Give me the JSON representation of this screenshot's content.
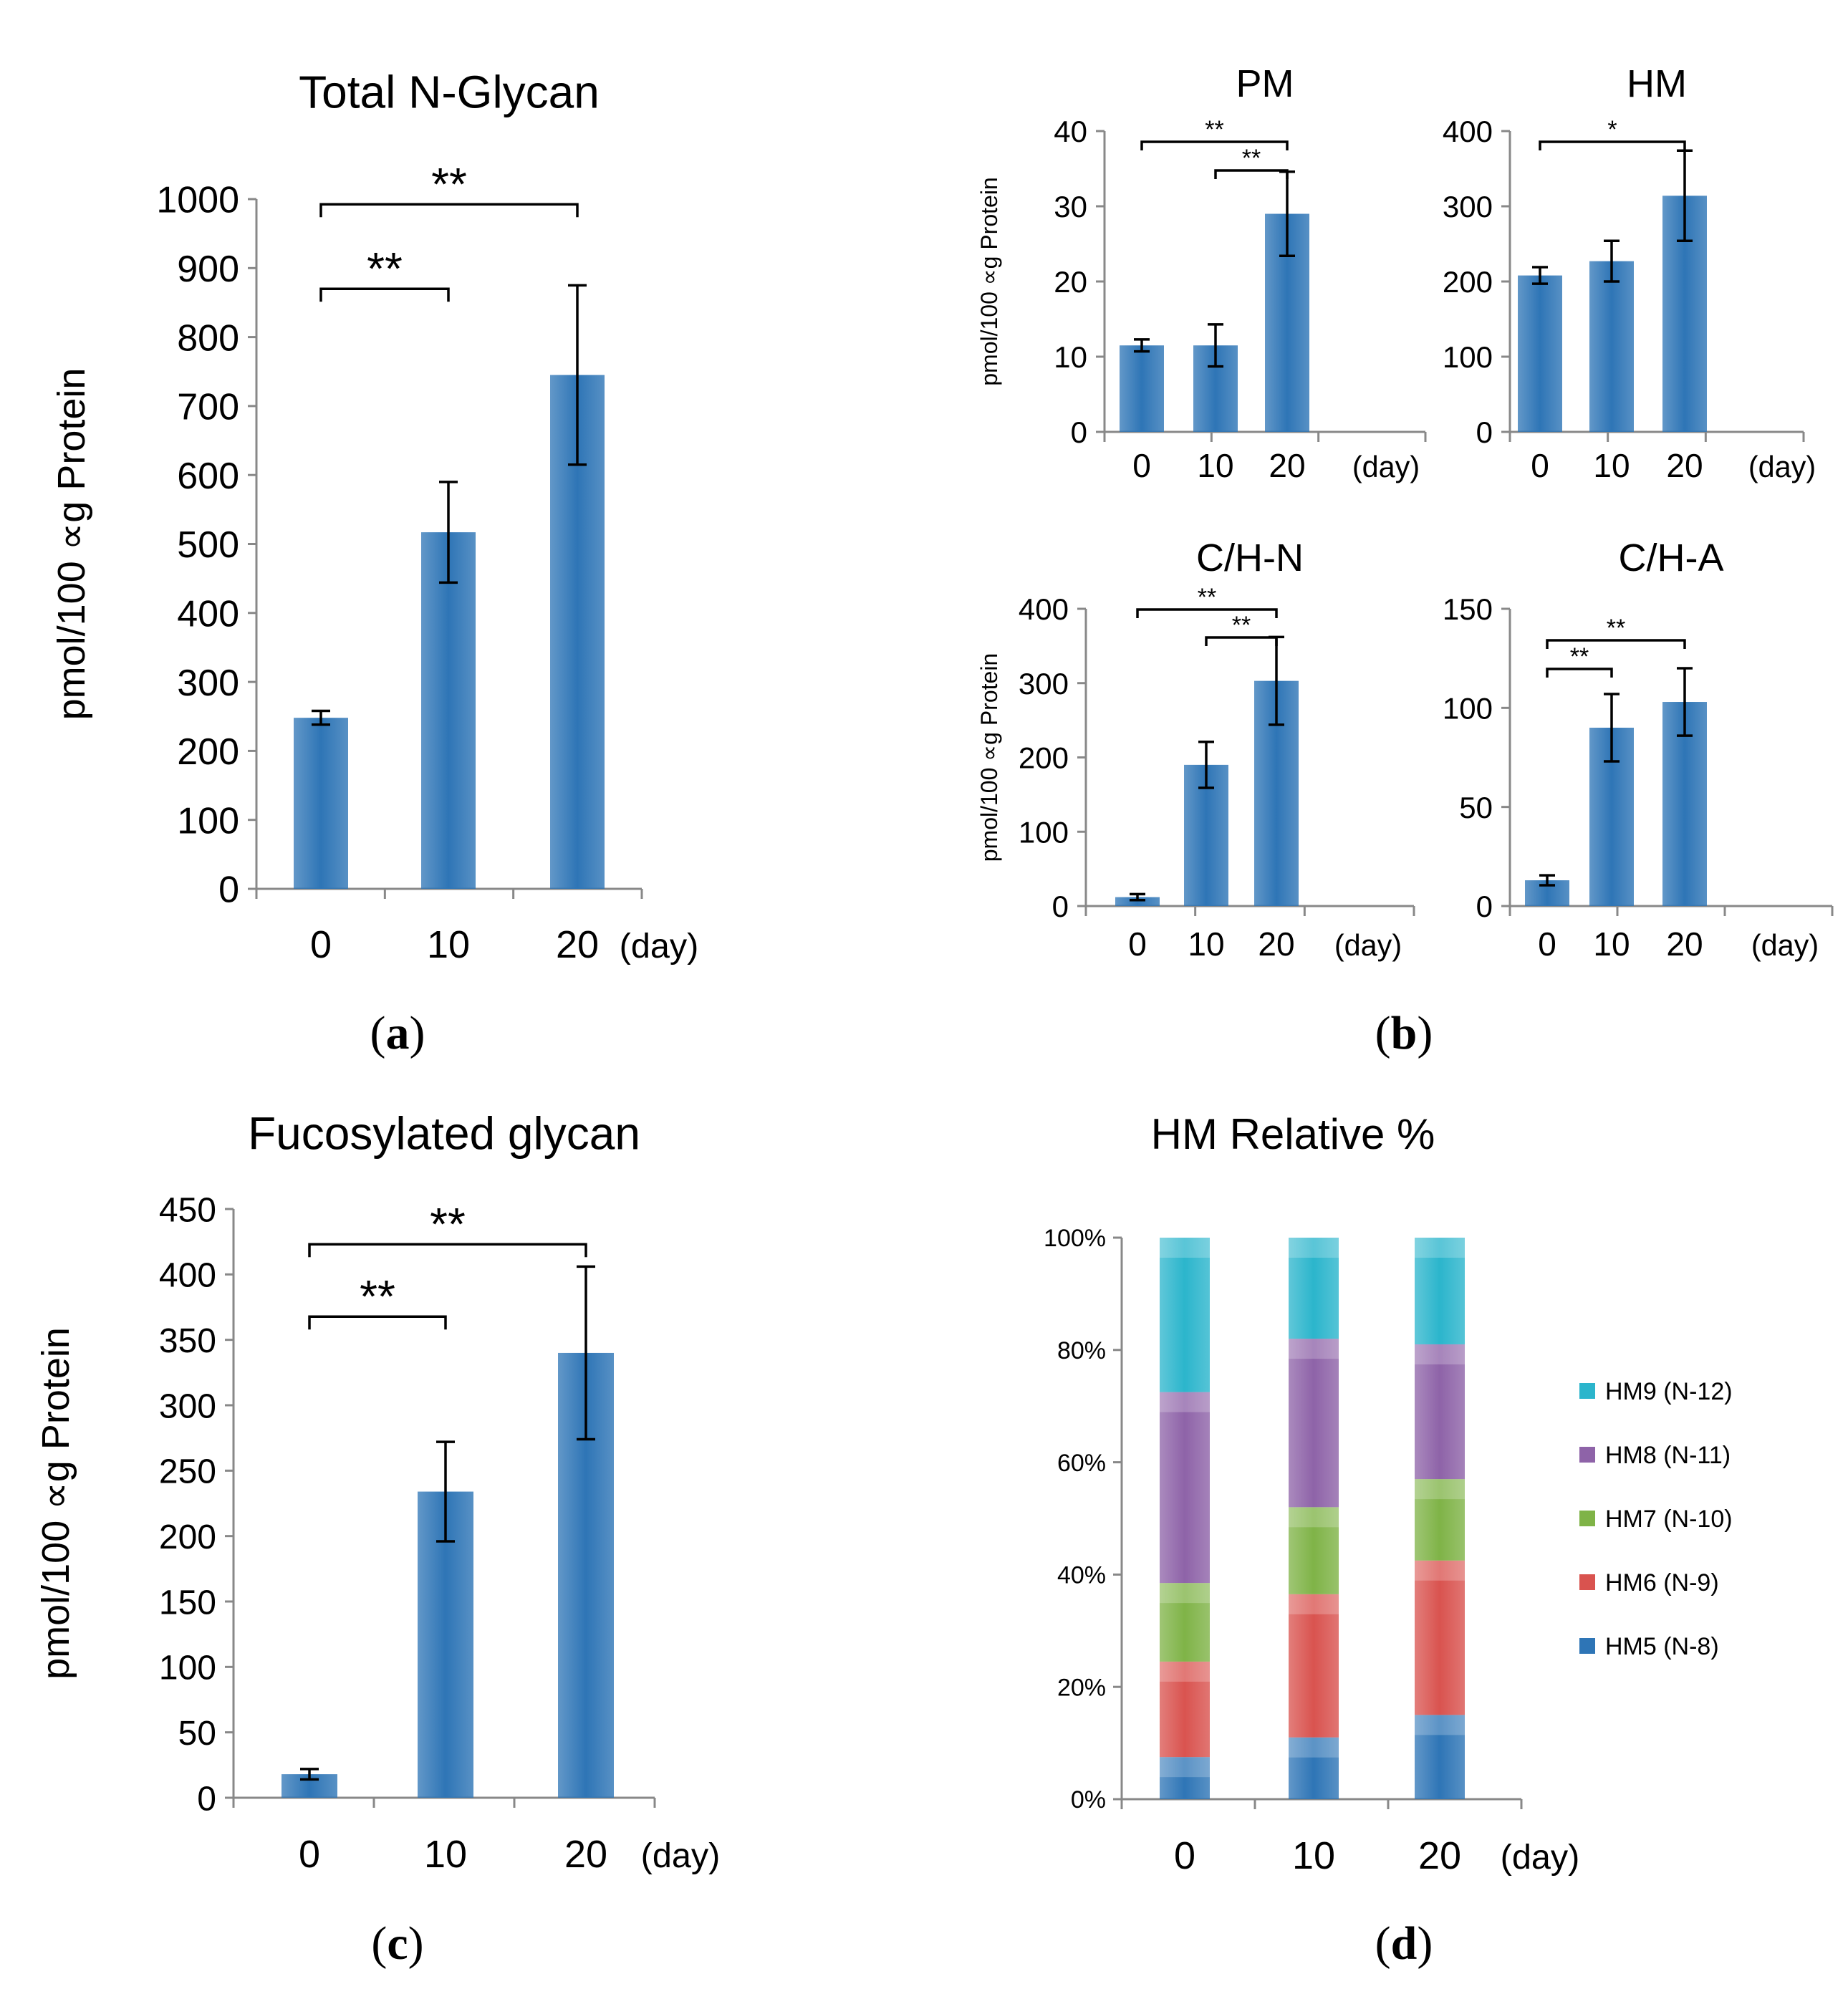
{
  "figure": {
    "panel_labels": [
      "(a)",
      "(b)",
      "(c)",
      "(d)"
    ]
  },
  "colors": {
    "bar": "#2E75B6",
    "bar_light": "#4A90D0",
    "axis": "#888888",
    "text": "#000000",
    "hm5": "#2E75B6",
    "hm6": "#D9534F",
    "hm7": "#7FB347",
    "hm8": "#8E63A8",
    "hm9": "#2BB5CC"
  },
  "chart_data": [
    {
      "id": "a",
      "type": "bar",
      "title": "Total N-Glycan",
      "ylabel": "pmol/100 ∝g Protein",
      "xlabel_unit": "(day)",
      "categories": [
        "0",
        "10",
        "20"
      ],
      "values": [
        248,
        517,
        745
      ],
      "errors": [
        10,
        73,
        130
      ],
      "ylim": [
        0,
        1000
      ],
      "yticks": [
        0,
        100,
        200,
        300,
        400,
        500,
        600,
        700,
        800,
        900,
        1000
      ],
      "annotations": [
        {
          "from": 0,
          "to": 2,
          "label": "**"
        },
        {
          "from": 0,
          "to": 1,
          "label": "**"
        }
      ]
    },
    {
      "id": "b1",
      "type": "bar",
      "title": "PM",
      "ylabel": "pmol/100 ∝g Protein",
      "xlabel_unit": "(day)",
      "categories": [
        "0",
        "10",
        "20"
      ],
      "values": [
        11.5,
        11.5,
        29
      ],
      "errors": [
        0.8,
        2.8,
        5.6
      ],
      "ylim": [
        0,
        40
      ],
      "yticks": [
        0,
        10,
        20,
        30,
        40
      ],
      "annotations": [
        {
          "from": 0,
          "to": 2,
          "label": "**"
        },
        {
          "from": 1,
          "to": 2,
          "label": "**"
        }
      ]
    },
    {
      "id": "b2",
      "type": "bar",
      "title": "HM",
      "ylabel": "",
      "xlabel_unit": "(day)",
      "categories": [
        "0",
        "10",
        "20"
      ],
      "values": [
        208,
        227,
        314
      ],
      "errors": [
        11,
        27,
        60
      ],
      "ylim": [
        0,
        400
      ],
      "yticks": [
        0,
        100,
        200,
        300,
        400
      ],
      "annotations": [
        {
          "from": 0,
          "to": 2,
          "label": "*"
        }
      ]
    },
    {
      "id": "b3",
      "type": "bar",
      "title": "C/H-N",
      "ylabel": "pmol/100 ∝g Protein",
      "xlabel_unit": "(day)",
      "categories": [
        "0",
        "10",
        "20"
      ],
      "values": [
        12,
        190,
        303
      ],
      "errors": [
        4,
        31,
        59
      ],
      "ylim": [
        0,
        400
      ],
      "yticks": [
        0,
        100,
        200,
        300,
        400
      ],
      "annotations": [
        {
          "from": 0,
          "to": 2,
          "label": "**"
        },
        {
          "from": 1,
          "to": 2,
          "label": "**"
        }
      ]
    },
    {
      "id": "b4",
      "type": "bar",
      "title": "C/H-A",
      "ylabel": "",
      "xlabel_unit": "(day)",
      "categories": [
        "0",
        "10",
        "20"
      ],
      "values": [
        13,
        90,
        103
      ],
      "errors": [
        2.5,
        17,
        17
      ],
      "ylim": [
        0,
        150
      ],
      "yticks": [
        0,
        50,
        100,
        150
      ],
      "annotations": [
        {
          "from": 0,
          "to": 2,
          "label": "**"
        },
        {
          "from": 0,
          "to": 1,
          "label": "**"
        }
      ]
    },
    {
      "id": "c",
      "type": "bar",
      "title": "Fucosylated glycan",
      "ylabel": "pmol/100 ∝g Protein",
      "xlabel_unit": "(day)",
      "categories": [
        "0",
        "10",
        "20"
      ],
      "values": [
        18,
        234,
        340
      ],
      "errors": [
        4,
        38,
        66
      ],
      "ylim": [
        0,
        450
      ],
      "yticks": [
        0,
        50,
        100,
        150,
        200,
        250,
        300,
        350,
        400,
        450
      ],
      "annotations": [
        {
          "from": 0,
          "to": 2,
          "label": "**"
        },
        {
          "from": 0,
          "to": 1,
          "label": "**"
        }
      ]
    },
    {
      "id": "d",
      "type": "stacked-bar",
      "title": "HM Relative %",
      "ylabel": "",
      "xlabel_unit": "(day)",
      "categories": [
        "0",
        "10",
        "20"
      ],
      "ylim": [
        0,
        100
      ],
      "yticks": [
        "0%",
        "20%",
        "40%",
        "60%",
        "80%",
        "100%"
      ],
      "series": [
        {
          "name": "HM5 (N-8)",
          "color_key": "hm5",
          "values": [
            7.5,
            11,
            15
          ]
        },
        {
          "name": "HM6 (N-9)",
          "color_key": "hm6",
          "values": [
            17,
            25.5,
            27.5
          ]
        },
        {
          "name": "HM7 (N-10)",
          "color_key": "hm7",
          "values": [
            14,
            15.5,
            14.5
          ]
        },
        {
          "name": "HM8 (N-11)",
          "color_key": "hm8",
          "values": [
            34,
            30,
            24
          ]
        },
        {
          "name": "HM9 (N-12)",
          "color_key": "hm9",
          "values": [
            27.5,
            18,
            19
          ]
        }
      ],
      "legend_order": [
        "HM9 (N-12)",
        "HM8 (N-11)",
        "HM7 (N-10)",
        "HM6 (N-9)",
        "HM5 (N-8)"
      ]
    }
  ]
}
